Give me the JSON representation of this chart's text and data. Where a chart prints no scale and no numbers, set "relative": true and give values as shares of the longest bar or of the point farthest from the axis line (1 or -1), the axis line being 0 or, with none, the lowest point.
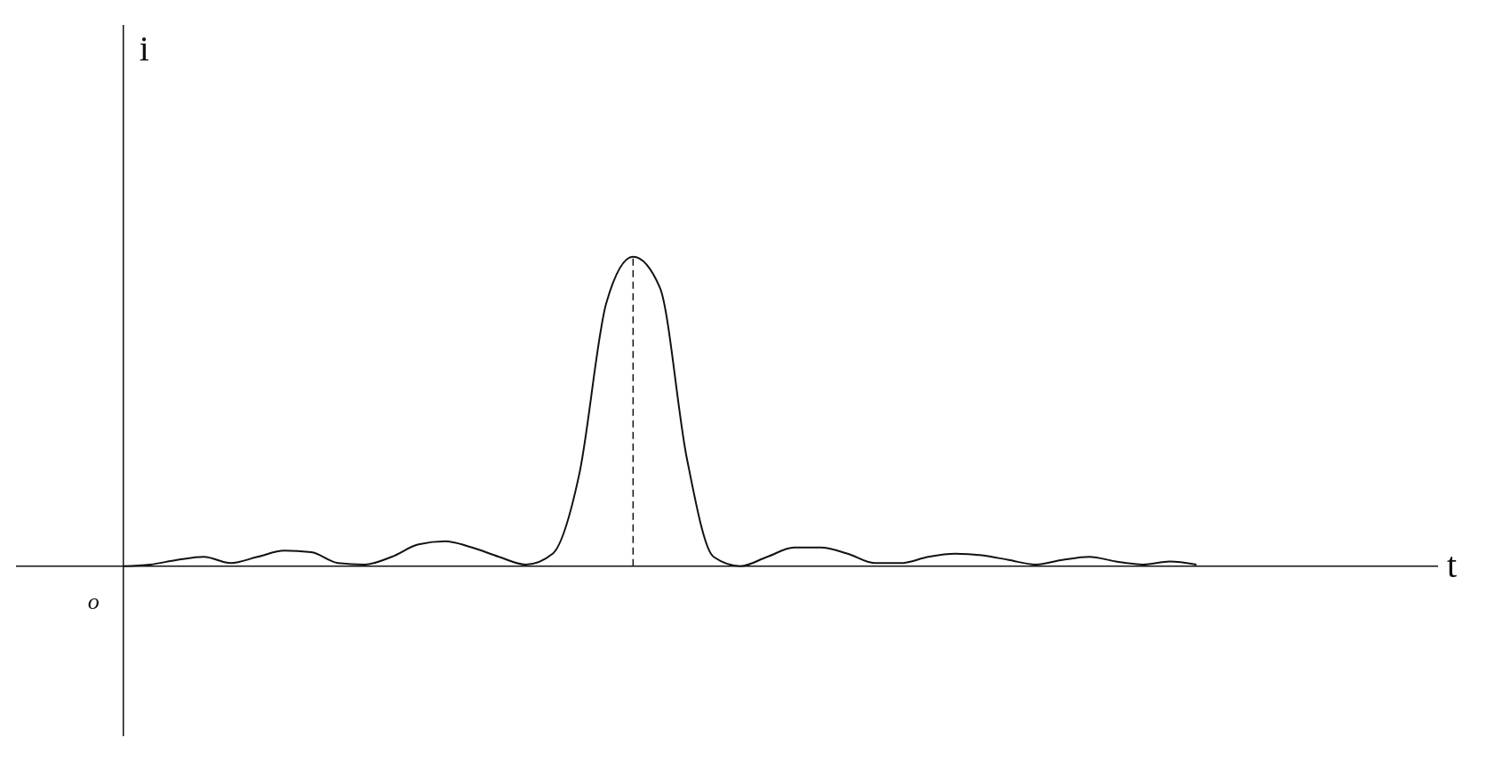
{
  "chart_data": {
    "type": "line",
    "relative": true,
    "annotations": [
      "o",
      "t",
      "i"
    ],
    "categories": [
      null,
      null,
      null,
      null,
      null,
      null,
      null,
      null,
      null,
      null,
      null,
      null,
      null,
      null,
      null,
      null,
      null,
      null,
      null,
      null,
      null,
      null,
      null,
      null,
      null,
      null,
      null,
      null,
      null,
      null,
      null,
      null,
      null,
      null,
      null,
      null,
      null,
      null,
      null,
      null,
      null
    ],
    "series": [
      {
        "color": "#111111",
        "values": [
          0,
          0.005,
          0.02,
          0.03,
          0.01,
          0.03,
          0.05,
          0.045,
          0.01,
          0.005,
          0.03,
          0.07,
          0.08,
          0.06,
          0.03,
          0.005,
          0.04,
          0.3,
          0.85,
          1,
          0.9,
          0.35,
          0.03,
          0,
          0.03,
          0.06,
          0.06,
          0.04,
          0.01,
          0.01,
          0.03,
          0.04,
          0.035,
          0.02,
          0.005,
          0.02,
          0.03,
          0.015,
          0.005,
          0.015,
          0.005
        ]
      }
    ],
    "marker": "none",
    "line_style": "solid"
  }
}
